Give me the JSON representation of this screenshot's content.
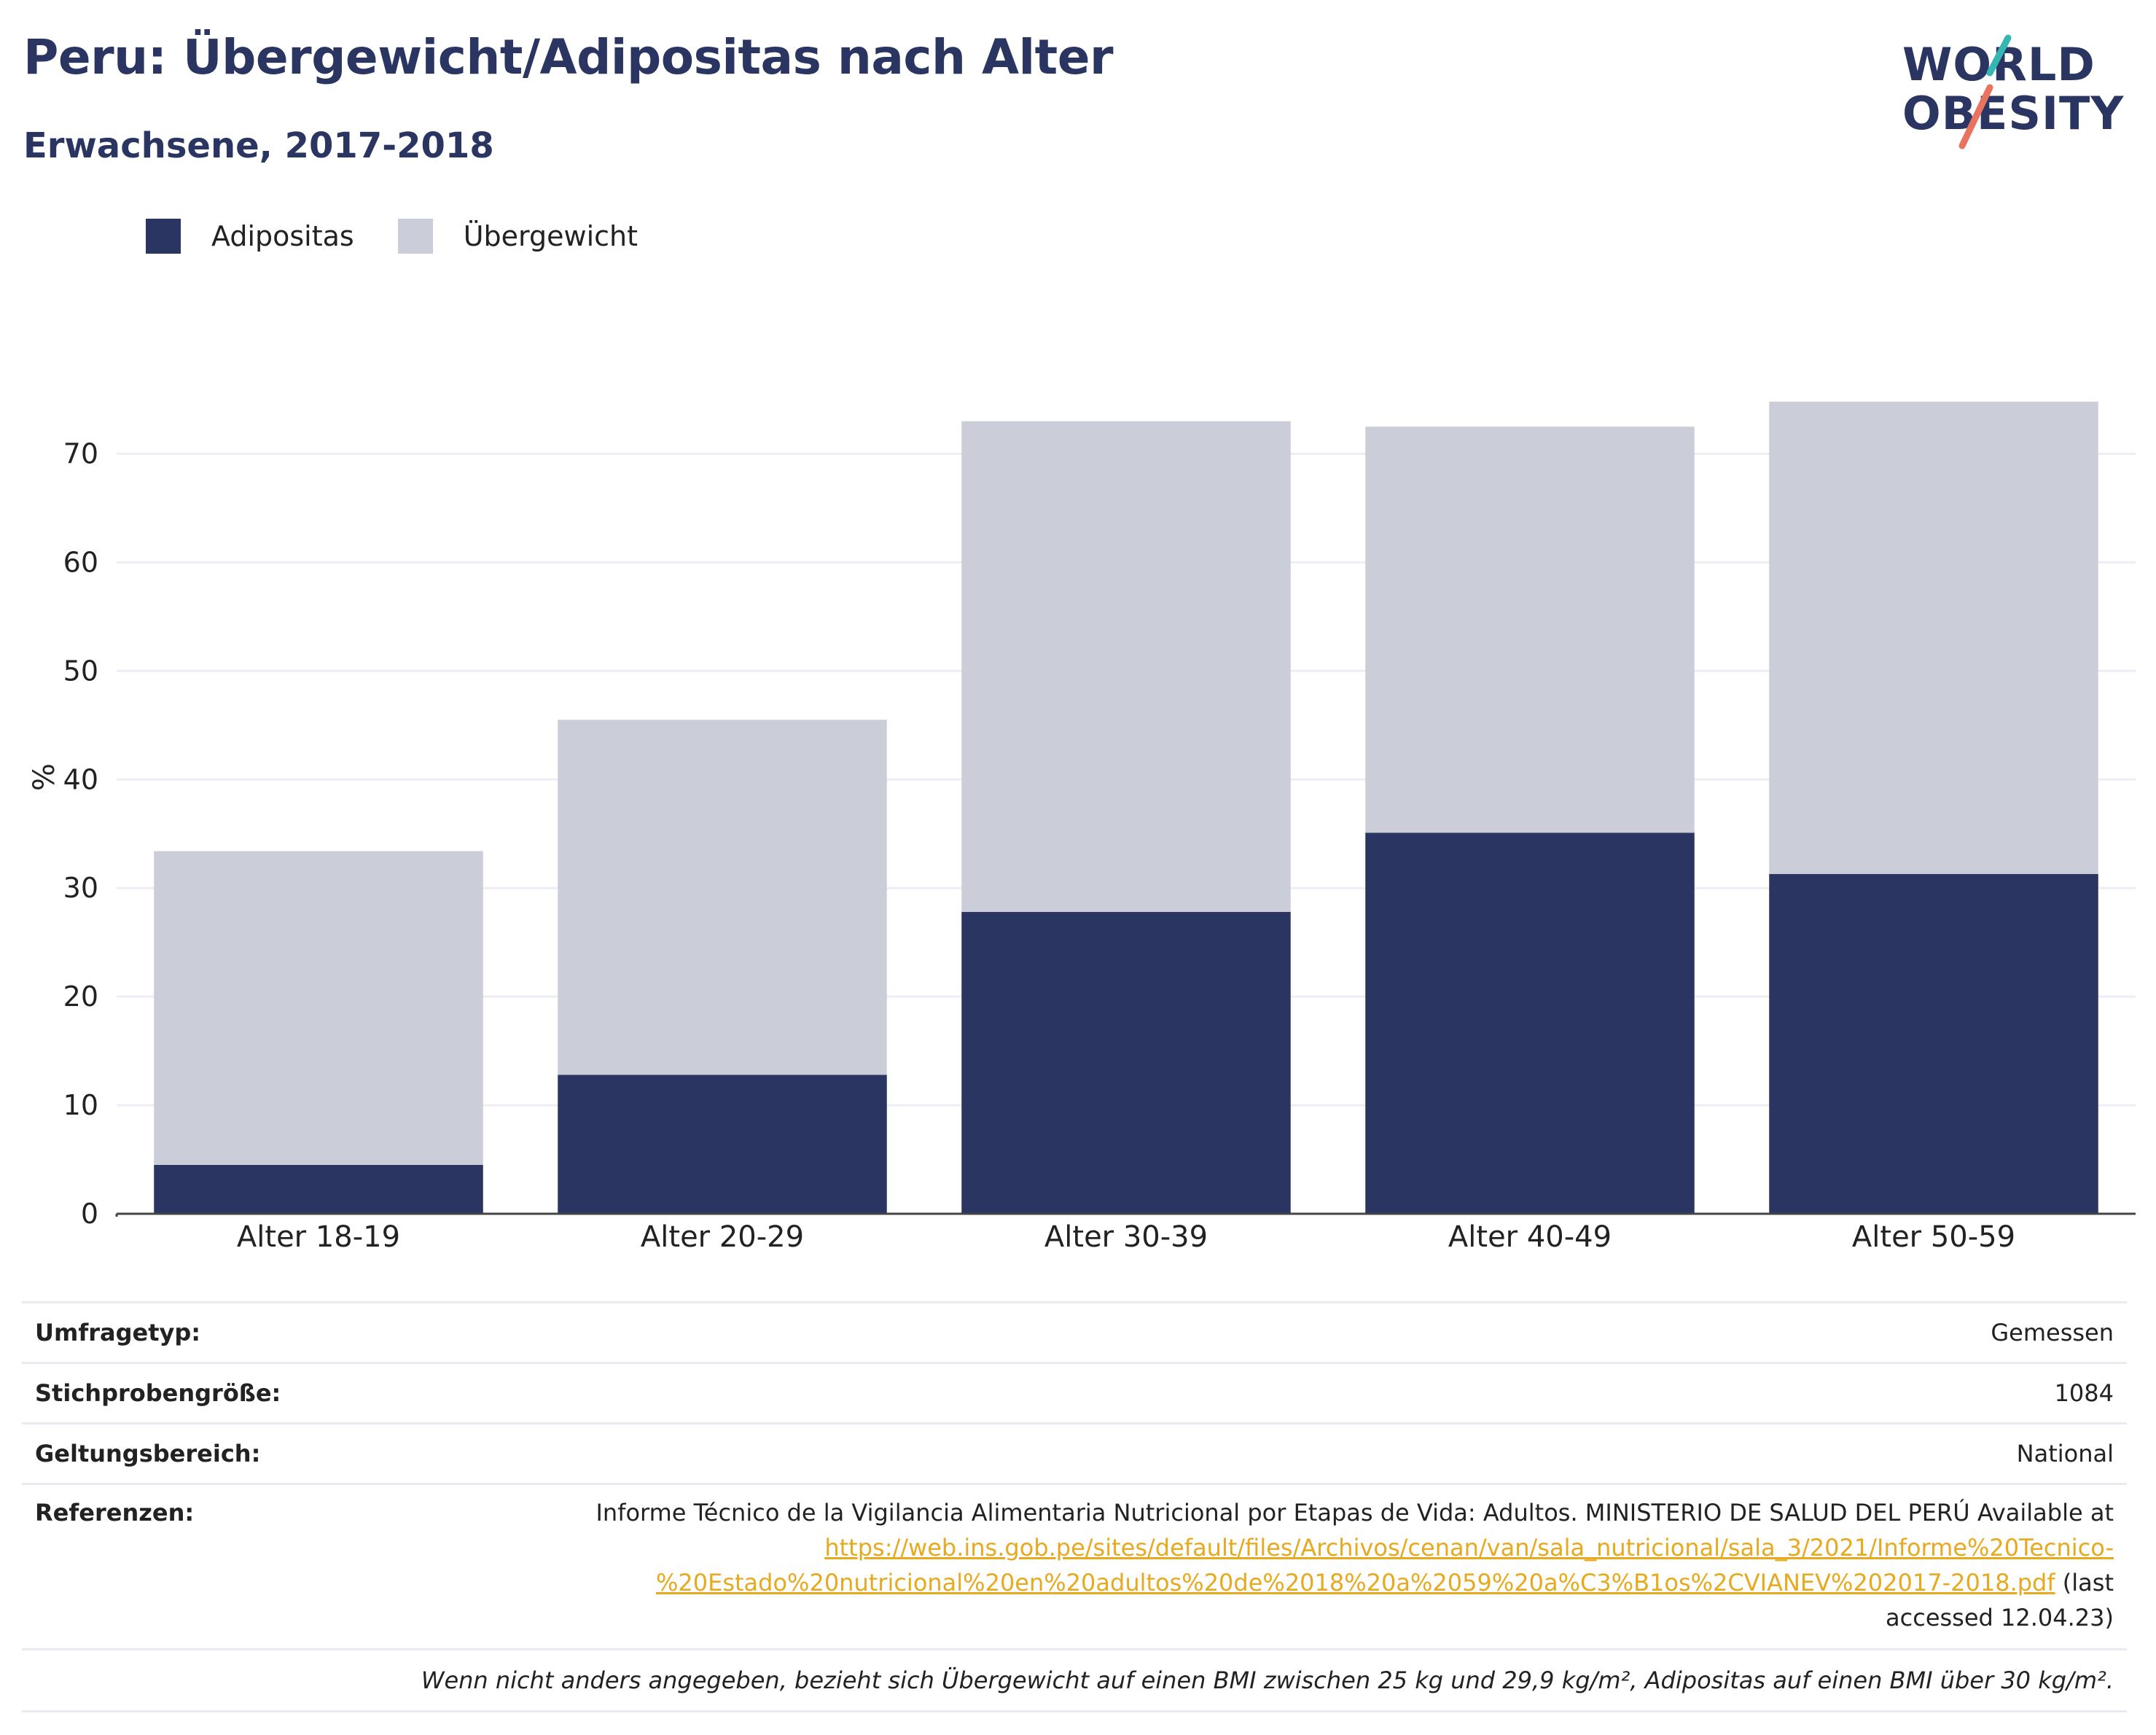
{
  "title": "Peru: Übergewicht/Adipositas nach Alter",
  "subtitle": "Erwachsene, 2017-2018",
  "logo": {
    "line1": "WORLD",
    "line2": "OBESITY"
  },
  "colors": {
    "obesity": "#2a3561",
    "overweight": "#cbcdd8",
    "brand": "#2a3561",
    "teal": "#34b6b3",
    "coral": "#e8735e",
    "link": "#e7a91e"
  },
  "chart_data": {
    "type": "bar",
    "stacked": true,
    "categories": [
      "Alter 18-19",
      "Alter 20-29",
      "Alter 30-39",
      "Alter 40-49",
      "Alter 50-59"
    ],
    "series": [
      {
        "name": "Adipositas",
        "values": [
          4.5,
          12.8,
          27.8,
          35.1,
          31.3
        ],
        "color": "#2a3561"
      },
      {
        "name": "Übergewicht",
        "values": [
          28.9,
          32.7,
          45.2,
          37.4,
          43.5
        ],
        "color": "#cbcdd8"
      }
    ],
    "ylabel": "%",
    "ylim": [
      0,
      75
    ],
    "yticks": [
      0,
      10,
      20,
      30,
      40,
      50,
      60,
      70
    ],
    "grid": true,
    "legend_position": "top-left"
  },
  "info": {
    "rows": [
      {
        "key": "Umfragetyp:",
        "value": "Gemessen"
      },
      {
        "key": "Stichprobengröße:",
        "value": "1084"
      },
      {
        "key": "Geltungsbereich:",
        "value": "National"
      }
    ],
    "ref_key": "Referenzen:",
    "ref_text": "Informe Técnico de la Vigilancia Alimentaria Nutricional por Etapas de Vida: Adultos. MINISTERIO DE SALUD DEL PERÚ Available at",
    "ref_url_1": "https://web.ins.gob.pe/sites/default/files/Archivos/cenan/van/sala_nutricional/sala_3/2021/Informe%20Tecnico-",
    "ref_url_2": "%20Estado%20nutricional%20en%20adultos%20de%2018%20a%2059%20a%C3%B1os%2CVIANEV%202017-2018.pdf",
    "ref_after": "(last",
    "ref_accessed": "accessed 12.04.23)",
    "note": "Wenn nicht anders angegeben, bezieht sich Übergewicht auf einen BMI zwischen 25 kg und 29,9 kg/m², Adipositas auf einen BMI über 30 kg/m²."
  }
}
